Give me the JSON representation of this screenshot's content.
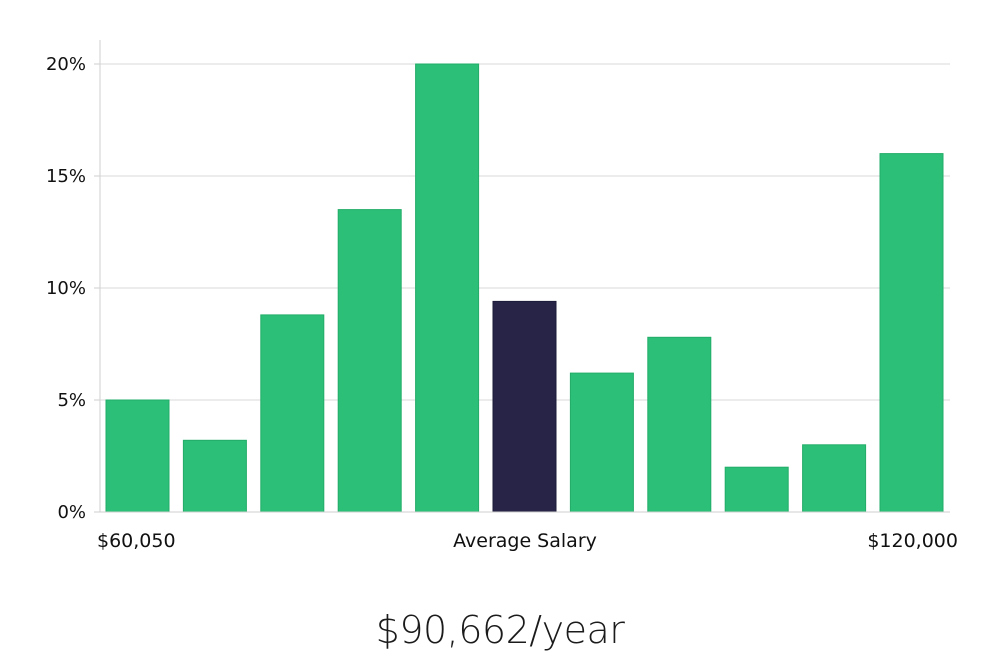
{
  "chart_data": {
    "type": "bar",
    "values": [
      5.0,
      3.2,
      8.8,
      13.5,
      20.0,
      9.4,
      6.2,
      7.8,
      2.0,
      3.0,
      16.0
    ],
    "highlight_index": 5,
    "ylim": [
      0,
      21
    ],
    "yticks": [
      0,
      5,
      10,
      15,
      20
    ],
    "ytick_labels": [
      "0%",
      "5%",
      "10%",
      "15%",
      "20%"
    ],
    "x_labels": {
      "min": "$60,050",
      "center": "Average Salary",
      "max": "$120,000"
    },
    "grid": true,
    "colors": {
      "bar": "#2bbf77",
      "bar_border": "#23ad68",
      "highlight": "#272447",
      "grid": "#d9d9d9",
      "axis": "#cfcfcf"
    }
  },
  "summary": {
    "text": "$90,662/year"
  }
}
